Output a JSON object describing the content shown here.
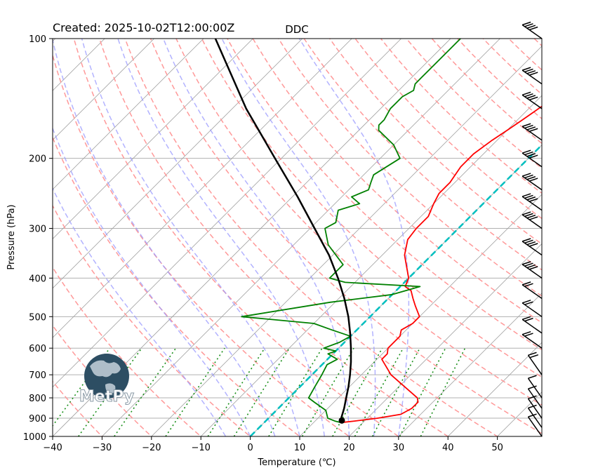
{
  "header": {
    "created_label": "Created: 2025-10-02T12:00:00Z",
    "station": "DDC"
  },
  "chart_data": {
    "type": "skew-t",
    "title": "DDC",
    "xlabel": "Temperature (℃)",
    "ylabel": "Pressure (hPa)",
    "xlim": [
      -40,
      59
    ],
    "ylim": [
      1000,
      100
    ],
    "x_ticks": [
      -40,
      -30,
      -20,
      -10,
      0,
      10,
      20,
      30,
      40,
      50
    ],
    "y_ticks": [
      1000,
      900,
      800,
      700,
      600,
      500,
      400,
      300,
      200,
      100
    ],
    "y_scale": "log",
    "grid": true,
    "logo_text": "MetPy",
    "colors": {
      "temperature": "#ff0000",
      "dewpoint": "#008000",
      "parcel": "#000000",
      "zero_isotherm": "#00bfbf",
      "dry_adiabats": "#ff9999",
      "moist_adiabats": "#9999ff",
      "mixing_ratio": "#1a8f1a",
      "isotherms": "#888888"
    },
    "series": [
      {
        "name": "temperature",
        "p": [
          923,
          915,
          900,
          880,
          850,
          820,
          800,
          700,
          640,
          620,
          600,
          560,
          540,
          520,
          500,
          470,
          450,
          430,
          420,
          400,
          350,
          320,
          300,
          280,
          260,
          245,
          230,
          210,
          195,
          180,
          170,
          160,
          150,
          140,
          135,
          130,
          120,
          110,
          100
        ],
        "t": [
          15.5,
          18,
          22,
          26,
          27,
          27,
          26,
          16,
          11,
          11,
          10,
          10,
          9,
          10,
          10,
          7,
          5,
          3,
          1,
          0,
          -5.5,
          -8,
          -8.5,
          -8.5,
          -10,
          -11,
          -11,
          -12,
          -12,
          -11,
          -10,
          -9,
          -8,
          -7,
          -7,
          -7,
          -7,
          -7,
          -7
        ]
      },
      {
        "name": "dewpoint",
        "p": [
          923,
          915,
          900,
          860,
          820,
          800,
          750,
          700,
          660,
          640,
          620,
          610,
          600,
          580,
          560,
          540,
          520,
          500,
          460,
          440,
          420,
          410,
          400,
          370,
          330,
          300,
          290,
          270,
          260,
          250,
          240,
          230,
          220,
          200,
          185,
          170,
          165,
          160,
          150,
          145,
          140,
          135,
          130,
          125,
          120,
          110,
          100
        ],
        "t": [
          15.5,
          14,
          12,
          10,
          6,
          4,
          3,
          2,
          1,
          2,
          -1,
          0,
          -3,
          -1,
          0,
          -5,
          -10,
          -26,
          -11,
          0,
          4,
          -12,
          -16,
          -16,
          -23,
          -27,
          -26,
          -28,
          -25,
          -28,
          -26,
          -27,
          -28,
          -26,
          -30,
          -36,
          -37,
          -37,
          -38,
          -38,
          -38,
          -37,
          -38,
          -38,
          -38,
          -38,
          -38
        ]
      },
      {
        "name": "parcel",
        "p": [
          923,
          900,
          850,
          800,
          750,
          700,
          650,
          600,
          550,
          500,
          450,
          400,
          350,
          300,
          250,
          200,
          150,
          100
        ],
        "t": [
          15.3,
          14.7,
          13.3,
          11.6,
          9.8,
          7.7,
          5.3,
          2.5,
          -0.7,
          -4.4,
          -8.9,
          -14.3,
          -20.8,
          -29.1,
          -38.9,
          -51.3,
          -67.2,
          -87.6
        ]
      }
    ],
    "lcl_marker": {
      "p": 912,
      "t": 15.3
    },
    "zero_isotherm_c": 0,
    "wind_barbs": [
      {
        "p": 1000
      },
      {
        "p": 950
      },
      {
        "p": 900
      },
      {
        "p": 850
      },
      {
        "p": 800
      },
      {
        "p": 700
      },
      {
        "p": 600
      },
      {
        "p": 550
      },
      {
        "p": 500
      },
      {
        "p": 450
      },
      {
        "p": 400
      },
      {
        "p": 350
      },
      {
        "p": 300
      },
      {
        "p": 270
      },
      {
        "p": 240
      },
      {
        "p": 210
      },
      {
        "p": 180
      },
      {
        "p": 150
      },
      {
        "p": 130
      },
      {
        "p": 100
      }
    ]
  }
}
